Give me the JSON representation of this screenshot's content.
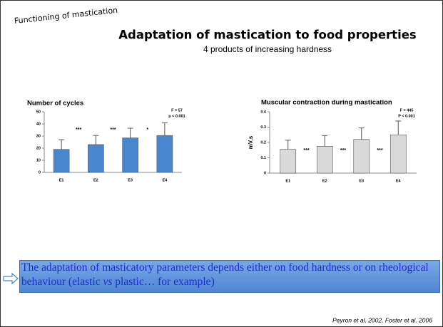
{
  "slide": {
    "section": "Functioning of mastication",
    "title": "Adaptation of mastication to food properties",
    "subtitle": "4 products of increasing hardness",
    "conclusion": [
      "The adaptation of masticatory parameters depends either on food hardness or on rheological behaviour (elastic ",
      "vs",
      " plastic… for example)"
    ],
    "citation": "Peyron et al, 2002, Foster et al, 2006"
  },
  "chart_data": [
    {
      "type": "bar",
      "title": "Number of cycles",
      "categories": [
        "E1",
        "E2",
        "E3",
        "E4"
      ],
      "values": [
        19,
        23,
        28.5,
        30.5
      ],
      "errors": [
        8,
        7.5,
        8,
        10.5
      ],
      "color": "#4a86d0",
      "ylim": [
        0,
        50
      ],
      "yticks": [
        0,
        10,
        20,
        30,
        40,
        50
      ],
      "stats": [
        "F = 57",
        "p < 0.001"
      ],
      "significance": [
        "***",
        "***",
        "*"
      ]
    },
    {
      "type": "bar",
      "title": "Muscular contraction during mastication",
      "y_label": "mV.s",
      "categories": [
        "E1",
        "E2",
        "E3",
        "E4"
      ],
      "values": [
        0.155,
        0.175,
        0.22,
        0.25
      ],
      "errors": [
        0.06,
        0.07,
        0.075,
        0.09
      ],
      "color": "#d9d9d9",
      "ylim": [
        0,
        0.4
      ],
      "yticks": [
        0,
        0.1,
        0.2,
        0.3,
        0.4
      ],
      "stats": [
        "F = 445",
        "P < 0.001"
      ],
      "significance": [
        "***",
        "***",
        "***"
      ]
    }
  ]
}
